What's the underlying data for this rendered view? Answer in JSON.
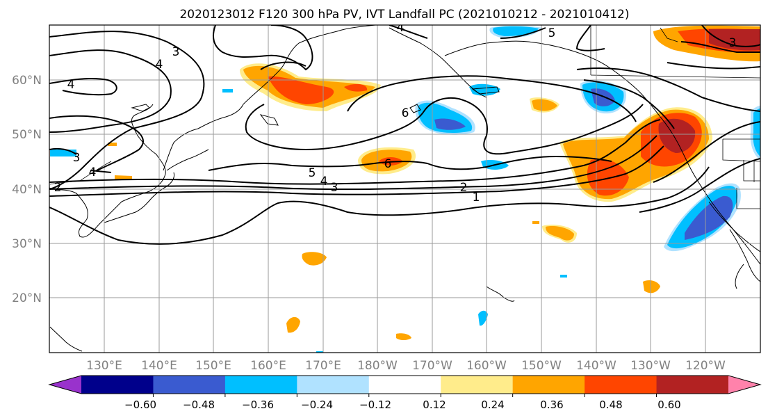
{
  "title": "2020123012 F120 300 hPa PV, IVT Landfall PC (2021010212 - 2021010412)",
  "lat_labels": [
    "60°N",
    "50°N",
    "40°N",
    "30°N",
    "20°N"
  ],
  "lon_labels": [
    "130°E",
    "140°E",
    "150°E",
    "160°E",
    "170°E",
    "180°W",
    "170°W",
    "160°W",
    "150°W",
    "140°W",
    "130°W",
    "120°W"
  ],
  "colorbar": {
    "tick_labels": [
      "−0.60",
      "−0.48",
      "−0.36",
      "−0.24",
      "−0.12",
      "0.12",
      "0.24",
      "0.36",
      "0.48",
      "0.60"
    ],
    "colors": [
      "#9932cc",
      "#00008b",
      "#3a5bd0",
      "#00bfff",
      "#b0e2ff",
      "#ffffff",
      "#ffec8b",
      "#ffa500",
      "#ff4500",
      "#b22222",
      "#ff82ab"
    ]
  },
  "contour_labels": [
    "4",
    "3",
    "4",
    "4",
    "4",
    "3",
    "5",
    "6",
    "6",
    "5",
    "4",
    "3",
    "2",
    "1",
    "2",
    "3"
  ],
  "colors": {
    "pos1": "#ffec8b",
    "pos2": "#ffa500",
    "pos3": "#ff4500",
    "pos4": "#b22222",
    "pos5": "#ff82ab",
    "neg1": "#b0e2ff",
    "neg2": "#00bfff",
    "neg3": "#3a5bd0",
    "neg4": "#00008b",
    "neg5": "#9932cc"
  }
}
